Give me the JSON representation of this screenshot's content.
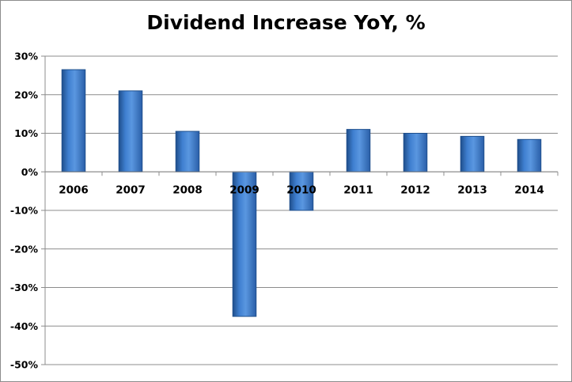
{
  "chart_data": {
    "type": "bar",
    "title": "Dividend Increase YoY, %",
    "xlabel": "",
    "ylabel": "",
    "categories": [
      "2006",
      "2007",
      "2008",
      "2009",
      "2010",
      "2011",
      "2012",
      "2013",
      "2014"
    ],
    "values": [
      26.5,
      21.0,
      10.5,
      -37.5,
      -10.0,
      11.0,
      10.0,
      9.2,
      8.4
    ],
    "ylim": [
      -50,
      30
    ],
    "yticks": [
      30,
      20,
      10,
      0,
      -10,
      -20,
      -30,
      -40,
      -50
    ],
    "ytick_labels": [
      "30%",
      "20%",
      "10%",
      "0%",
      "-10%",
      "-20%",
      "-30%",
      "-40%",
      "-50%"
    ],
    "grid": true,
    "legend": "none",
    "bar_color": "#3a78c9",
    "bar_edge_color": "#1f4f8c"
  }
}
